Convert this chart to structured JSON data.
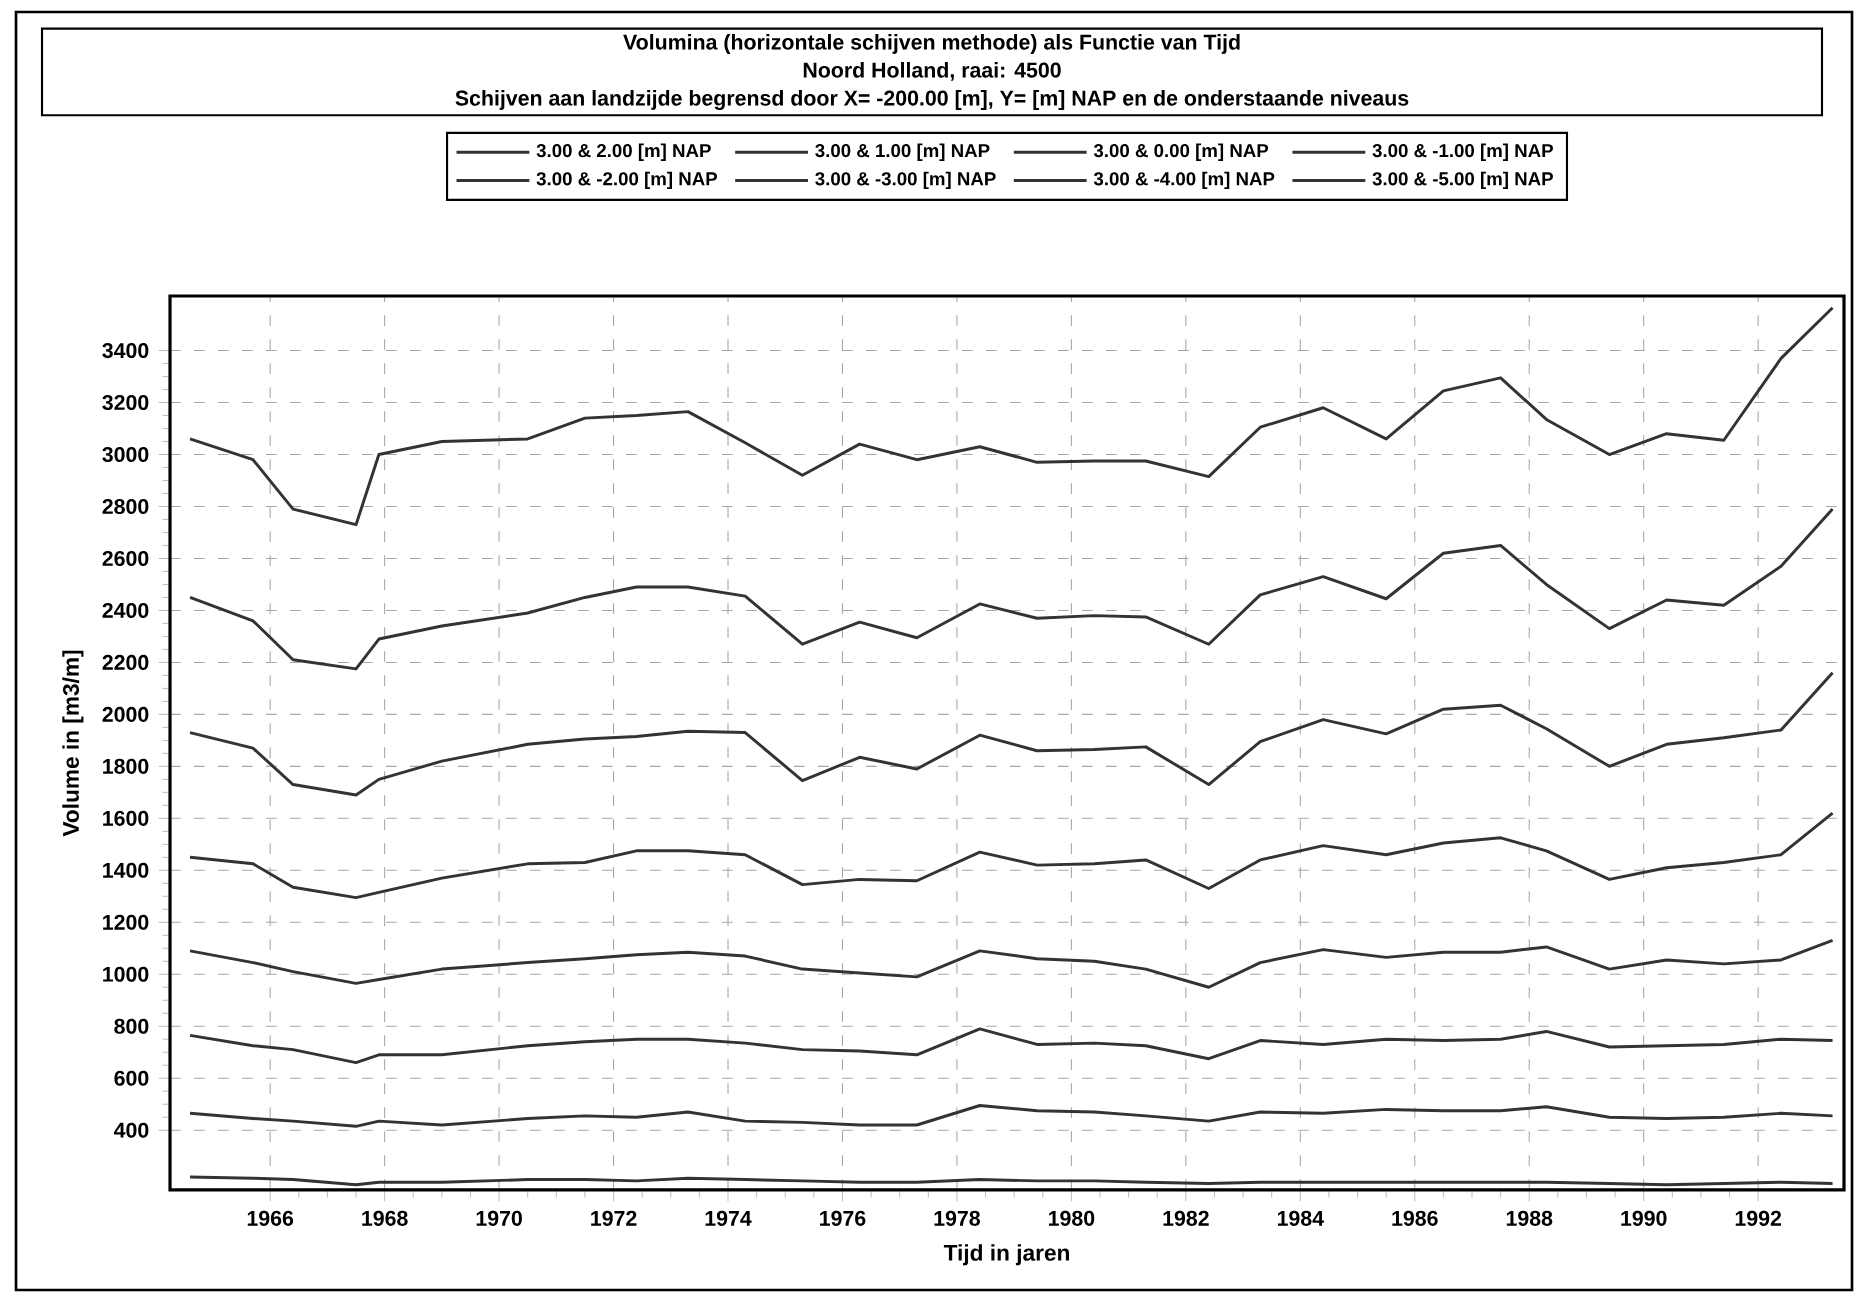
{
  "chart_data": {
    "type": "line",
    "title": "Volumina (horizontale schijven methode) als Functie van Tijd",
    "subtitle": "Noord Holland, raai: 4500",
    "annotations": [
      "Schijven aan landzijde begrensd door X= -200.00 [m], Y=  [m] NAP en de onderstaande niveaus"
    ],
    "xlabel": "Tijd in jaren",
    "ylabel": "Volume in [m3/m]",
    "x": [
      1964.6,
      1965.7,
      1966.4,
      1967.5,
      1967.9,
      1969.0,
      1970.5,
      1971.5,
      1972.4,
      1973.3,
      1974.3,
      1975.3,
      1976.3,
      1977.3,
      1978.4,
      1979.4,
      1980.4,
      1981.3,
      1982.4,
      1983.3,
      1984.4,
      1985.5,
      1986.5,
      1987.5,
      1988.3,
      1989.4,
      1990.4,
      1991.4,
      1992.4,
      1993.3
    ],
    "series": [
      {
        "name": "3.00 & 2.00 [m] NAP",
        "color": "#333333",
        "values": [
          220,
          215,
          210,
          190,
          200,
          200,
          210,
          210,
          205,
          215,
          210,
          205,
          200,
          200,
          210,
          205,
          205,
          200,
          195,
          200,
          200,
          200,
          200,
          200,
          200,
          195,
          190,
          195,
          200,
          195
        ]
      },
      {
        "name": "3.00 & 1.00 [m] NAP",
        "color": "#333333",
        "values": [
          465,
          445,
          435,
          415,
          435,
          420,
          445,
          455,
          450,
          470,
          435,
          430,
          420,
          420,
          495,
          475,
          470,
          455,
          435,
          470,
          465,
          480,
          475,
          475,
          490,
          450,
          445,
          450,
          465,
          455
        ]
      },
      {
        "name": "3.00 & 0.00 [m] NAP",
        "color": "#333333",
        "values": [
          765,
          725,
          710,
          660,
          690,
          690,
          725,
          740,
          750,
          750,
          735,
          710,
          705,
          690,
          790,
          730,
          735,
          725,
          675,
          745,
          730,
          750,
          745,
          750,
          780,
          720,
          725,
          730,
          750,
          745
        ]
      },
      {
        "name": "3.00 & -1.00 [m] NAP",
        "color": "#333333",
        "values": [
          1090,
          1045,
          1010,
          965,
          980,
          1020,
          1045,
          1060,
          1075,
          1085,
          1070,
          1020,
          1005,
          990,
          1090,
          1060,
          1050,
          1020,
          950,
          1045,
          1095,
          1065,
          1085,
          1085,
          1105,
          1020,
          1055,
          1040,
          1055,
          1130
        ]
      },
      {
        "name": "3.00 & -2.00 [m] NAP",
        "color": "#333333",
        "values": [
          1450,
          1425,
          1335,
          1295,
          1315,
          1370,
          1425,
          1430,
          1475,
          1475,
          1460,
          1345,
          1365,
          1360,
          1470,
          1420,
          1425,
          1440,
          1330,
          1440,
          1495,
          1460,
          1505,
          1525,
          1475,
          1365,
          1410,
          1430,
          1460,
          1620
        ]
      },
      {
        "name": "3.00 & -3.00 [m] NAP",
        "color": "#333333",
        "values": [
          1930,
          1870,
          1730,
          1690,
          1750,
          1820,
          1885,
          1905,
          1915,
          1935,
          1930,
          1745,
          1835,
          1790,
          1920,
          1860,
          1865,
          1875,
          1730,
          1895,
          1980,
          1925,
          2020,
          2035,
          1945,
          1800,
          1885,
          1910,
          1940,
          2160
        ]
      },
      {
        "name": "3.00 & -4.00 [m] NAP",
        "color": "#333333",
        "values": [
          2450,
          2360,
          2210,
          2175,
          2290,
          2340,
          2390,
          2450,
          2490,
          2490,
          2455,
          2270,
          2355,
          2295,
          2425,
          2370,
          2380,
          2375,
          2270,
          2460,
          2530,
          2445,
          2620,
          2650,
          2500,
          2330,
          2440,
          2420,
          2570,
          2790
        ]
      },
      {
        "name": "3.00 & -5.00 [m] NAP",
        "color": "#333333",
        "values": [
          3060,
          2980,
          2790,
          2730,
          3000,
          3050,
          3060,
          3140,
          3150,
          3165,
          3045,
          2920,
          3040,
          2980,
          3030,
          2970,
          2975,
          2975,
          2915,
          3105,
          3180,
          3060,
          3245,
          3295,
          3135,
          3000,
          3080,
          3055,
          3370,
          3565
        ]
      }
    ],
    "xlim": [
      1964.25,
      1993.5
    ],
    "ylim": [
      170,
      3610
    ],
    "xticks": [
      1966,
      1968,
      1970,
      1972,
      1974,
      1976,
      1978,
      1980,
      1982,
      1984,
      1986,
      1988,
      1990,
      1992
    ],
    "yticks": [
      400,
      600,
      800,
      1000,
      1200,
      1400,
      1600,
      1800,
      2000,
      2200,
      2400,
      2600,
      2800,
      3000,
      3200,
      3400
    ],
    "grid": true,
    "legend": "top"
  }
}
